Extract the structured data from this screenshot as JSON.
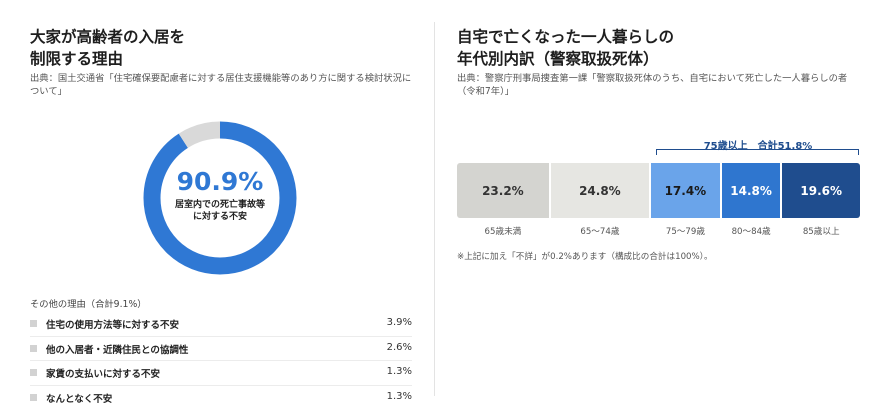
{
  "left": {
    "title": "大家が高齢者の入居を\n制限する理由",
    "source": "出典：国土交通省「住宅確保要配慮者に対する居住支援機能等のあり方に関する検討状況について」",
    "center_value": "90.9%",
    "center_label": "居室内での死亡事故等に対する不安",
    "others_heading": "その他の理由（合計9.1%）",
    "others": [
      {
        "label": "住宅の使用方法等に対する不安",
        "value": "3.9%"
      },
      {
        "label": "他の入居者・近隣住民との協調性",
        "value": "2.6%"
      },
      {
        "label": "家賃の支払いに対する不安",
        "value": "1.3%"
      },
      {
        "label": "なんとなく不安",
        "value": "1.3%"
      }
    ]
  },
  "right": {
    "title": "自宅で亡くなった一人暮らしの\n年代別内訳（警察取扱死体）",
    "source": "出典：警察庁刑事局捜査第一課「警察取扱死体のうち、自宅において死亡した一人暮らしの者（令和7年）」",
    "bracket_label": "75歳以上　合計51.8%",
    "note": "※上記に加え「不詳」が0.2%あります（構成比の合計は100%）。"
  },
  "chart_data": [
    {
      "type": "pie",
      "variant": "donut",
      "title": "大家が高齢者の入居を制限する理由",
      "labels": [
        "居室内での死亡事故等に対する不安",
        "その他の理由"
      ],
      "values": [
        90.9,
        9.1
      ],
      "colors": [
        "#2f78d4",
        "#d9d9d9"
      ]
    },
    {
      "type": "bar",
      "variant": "stacked-100",
      "title": "自宅で亡くなった一人暮らしの年代別内訳（警察取扱死体）",
      "categories": [
        "65歳未満",
        "65〜74歳",
        "75〜79歳",
        "80〜84歳",
        "85歳以上"
      ],
      "values": [
        23.2,
        24.8,
        17.4,
        14.8,
        19.6
      ],
      "value_labels": [
        "23.2%",
        "24.8%",
        "17.4%",
        "14.8%",
        "19.6%"
      ],
      "colors": [
        "#d4d4d0",
        "#e6e6e2",
        "#6aa4ea",
        "#2f76cf",
        "#1f4d8e"
      ],
      "text_colors": [
        "#333333",
        "#333333",
        "#1a1a1a",
        "#ffffff",
        "#ffffff"
      ]
    }
  ]
}
